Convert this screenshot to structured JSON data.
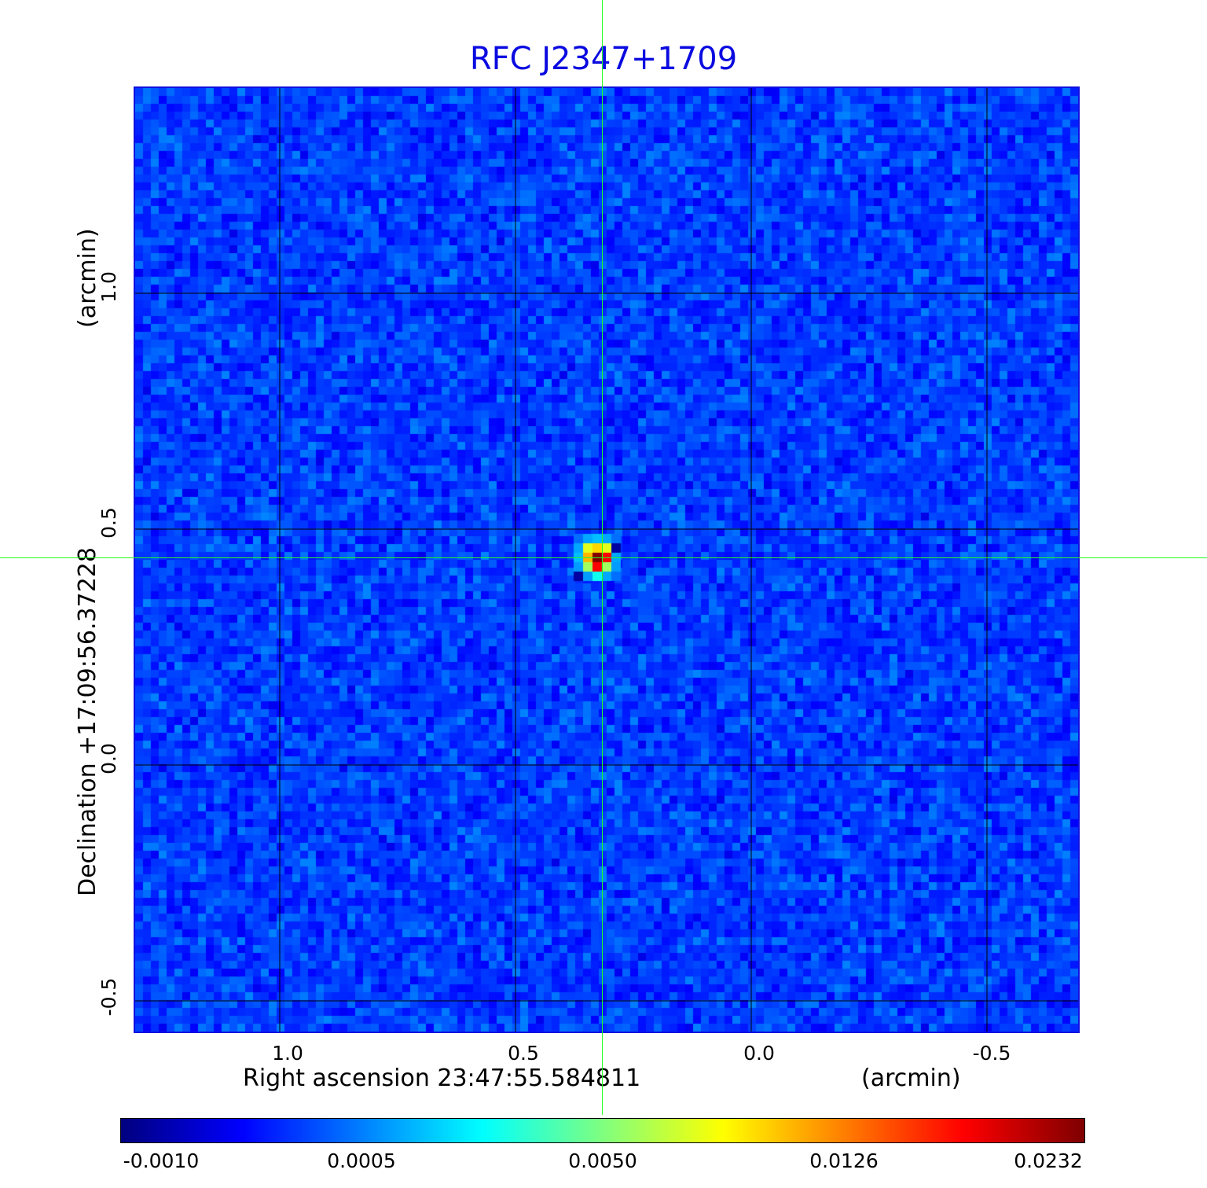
{
  "chart_data": {
    "type": "heatmap",
    "title": "RFC J2347+1709",
    "xlabel": "Right ascension  23:47:55.584811",
    "xunit": "(arcmin)",
    "ylabel": "Declination  +17:09:56.37228",
    "yunit": "(arcmin)",
    "xticks": [
      "1.0",
      "0.5",
      "0.0",
      "-0.5"
    ],
    "yticks": [
      "1.0",
      "0.5",
      "0.0",
      "-0.5"
    ],
    "xlim": [
      1.32,
      -0.69
    ],
    "ylim": [
      -0.57,
      1.44
    ],
    "grid": true,
    "colormap": "jet",
    "colorbar": {
      "placement": "bottom",
      "ticks": [
        "-0.0010",
        "0.0005",
        "0.0050",
        "0.0126",
        "0.0232"
      ],
      "tick_values": [
        -0.001,
        0.0005,
        0.005,
        0.0126,
        0.0232
      ]
    },
    "crosshair": {
      "x": 0.33,
      "y": 0.44,
      "color": "#22ff22"
    },
    "source": {
      "x": 0.33,
      "y": 0.44,
      "peak": 0.0232,
      "pixels": [
        [
          0.0004,
          0.0012,
          0.0016,
          0.0012,
          0.0004
        ],
        [
          0.0012,
          0.008,
          0.01,
          0.008,
          -0.0008
        ],
        [
          0.0016,
          0.011,
          0.0232,
          0.018,
          0.0012
        ],
        [
          0.001,
          0.006,
          0.018,
          0.006,
          0.001
        ],
        [
          -0.0008,
          0.001,
          0.003,
          0.0012,
          0.0004
        ]
      ]
    },
    "background_noise_range": [
      -0.0004,
      0.0006
    ]
  }
}
